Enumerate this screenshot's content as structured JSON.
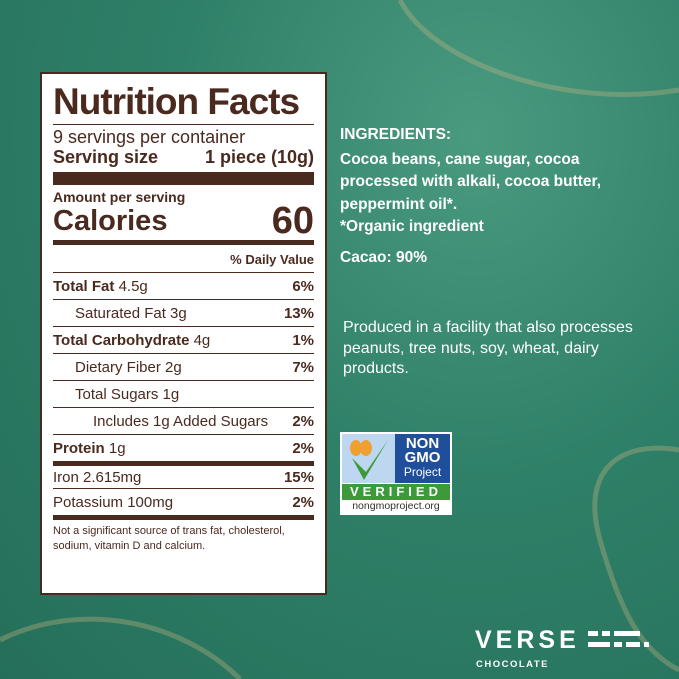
{
  "label": {
    "title": "Nutrition Facts",
    "servings": "9 servings per container",
    "serving_size_label": "Serving size",
    "serving_size_value": "1 piece (10g)",
    "amount_per_serving": "Amount per serving",
    "calories_label": "Calories",
    "calories_value": "60",
    "daily_value_header": "% Daily Value",
    "rows": [
      {
        "name": "Total Fat",
        "amount": "4.5g",
        "dv": "6%"
      },
      {
        "name": "Saturated Fat 3g",
        "amount": "",
        "dv": "13%"
      },
      {
        "name": "Total Carbohydrate",
        "amount": "4g",
        "dv": "1%"
      },
      {
        "name": "Dietary Fiber 2g",
        "amount": "",
        "dv": "7%"
      },
      {
        "name": "Total Sugars 1g",
        "amount": "",
        "dv": ""
      },
      {
        "name": "Includes 1g Added Sugars",
        "amount": "",
        "dv": "2%"
      },
      {
        "name": "Protein",
        "amount": "1g",
        "dv": "2%"
      },
      {
        "name": "Iron 2.615mg",
        "amount": "",
        "dv": "15%"
      },
      {
        "name": "Potassium 100mg",
        "amount": "",
        "dv": "2%"
      }
    ],
    "footnote": "Not a significant source of trans fat, cholesterol, sodium, vitamin D and calcium."
  },
  "ingredients": {
    "heading": "INGREDIENTS:",
    "text": "Cocoa beans, cane sugar, cocoa processed with alkali, cocoa butter, peppermint oil*.",
    "note": "*Organic ingredient",
    "cacao": "Cacao: 90%"
  },
  "allergen": "Produced in a facility that also processes peanuts, tree nuts, soy, wheat, dairy products.",
  "badge": {
    "line1": "NON",
    "line2": "GMO",
    "line3": "Project",
    "verified": "VERIFIED",
    "url": "nongmoproject.org"
  },
  "brand": {
    "name": "VERSE",
    "sub": "CHOCOLATE"
  },
  "colors": {
    "label_brown": "#4a2a1f",
    "background_green": "#2f8068",
    "badge_blue": "#1f4e9a",
    "badge_green": "#3c9a3a"
  }
}
